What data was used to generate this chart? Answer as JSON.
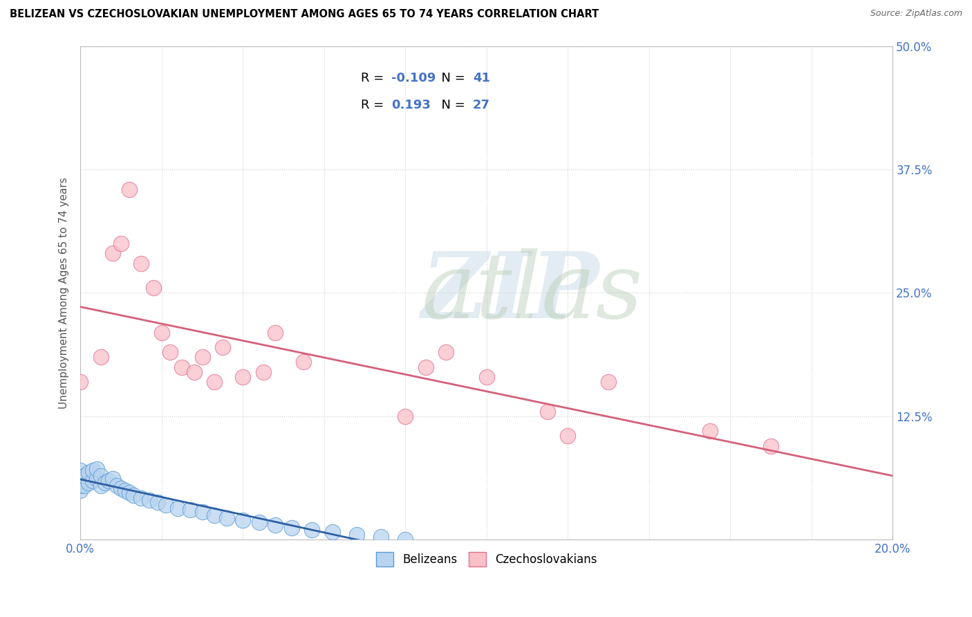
{
  "title": "BELIZEAN VS CZECHOSLOVAKIAN UNEMPLOYMENT AMONG AGES 65 TO 74 YEARS CORRELATION CHART",
  "source": "Source: ZipAtlas.com",
  "ylabel_label": "Unemployment Among Ages 65 to 74 years",
  "legend_entries": [
    {
      "label_r": "R = ",
      "label_rv": "-0.109",
      "label_n": "  N = ",
      "label_nv": "41",
      "color": "#b8d4f0"
    },
    {
      "label_r": "R =  ",
      "label_rv": "0.193",
      "label_n": "  N = ",
      "label_nv": "27",
      "color": "#f9c0c8"
    }
  ],
  "belizean_x": [
    0.0,
    0.0,
    0.0,
    0.0,
    0.0,
    0.001,
    0.001,
    0.002,
    0.002,
    0.003,
    0.003,
    0.004,
    0.004,
    0.005,
    0.005,
    0.006,
    0.007,
    0.008,
    0.009,
    0.01,
    0.011,
    0.012,
    0.013,
    0.015,
    0.017,
    0.019,
    0.021,
    0.024,
    0.027,
    0.03,
    0.033,
    0.036,
    0.04,
    0.044,
    0.048,
    0.052,
    0.057,
    0.062,
    0.068,
    0.074,
    0.08
  ],
  "belizean_y": [
    0.05,
    0.055,
    0.06,
    0.065,
    0.07,
    0.055,
    0.065,
    0.058,
    0.068,
    0.06,
    0.07,
    0.062,
    0.072,
    0.055,
    0.065,
    0.058,
    0.06,
    0.062,
    0.055,
    0.052,
    0.05,
    0.048,
    0.045,
    0.042,
    0.04,
    0.038,
    0.035,
    0.032,
    0.03,
    0.028,
    0.025,
    0.022,
    0.02,
    0.018,
    0.015,
    0.012,
    0.01,
    0.008,
    0.005,
    0.003,
    0.0
  ],
  "czechoslovakian_x": [
    0.0,
    0.005,
    0.008,
    0.01,
    0.012,
    0.015,
    0.018,
    0.02,
    0.022,
    0.025,
    0.028,
    0.03,
    0.033,
    0.035,
    0.04,
    0.045,
    0.048,
    0.055,
    0.08,
    0.085,
    0.09,
    0.1,
    0.115,
    0.12,
    0.13,
    0.155,
    0.17
  ],
  "czechoslovakian_y": [
    0.16,
    0.185,
    0.29,
    0.3,
    0.355,
    0.28,
    0.255,
    0.21,
    0.19,
    0.175,
    0.17,
    0.185,
    0.16,
    0.195,
    0.165,
    0.17,
    0.21,
    0.18,
    0.125,
    0.175,
    0.19,
    0.165,
    0.13,
    0.105,
    0.16,
    0.11,
    0.095
  ],
  "belizean_color": "#b8d4f0",
  "czechoslovakian_color": "#f9c0c8",
  "belizean_edge_color": "#5b9bd5",
  "czechoslovakian_edge_color": "#e07090",
  "belizean_line_color": "#2e5fa3",
  "czechoslovakian_line_color": "#d4607a",
  "xlim": [
    0.0,
    0.2
  ],
  "ylim": [
    0.0,
    0.5
  ],
  "yticks": [
    0.125,
    0.25,
    0.375,
    0.5
  ],
  "ytick_labels": [
    "12.5%",
    "25.0%",
    "37.5%",
    "50.0%"
  ],
  "xtick_show": [
    0.0,
    0.2
  ],
  "xtick_labels": [
    "0.0%",
    "20.0%"
  ]
}
